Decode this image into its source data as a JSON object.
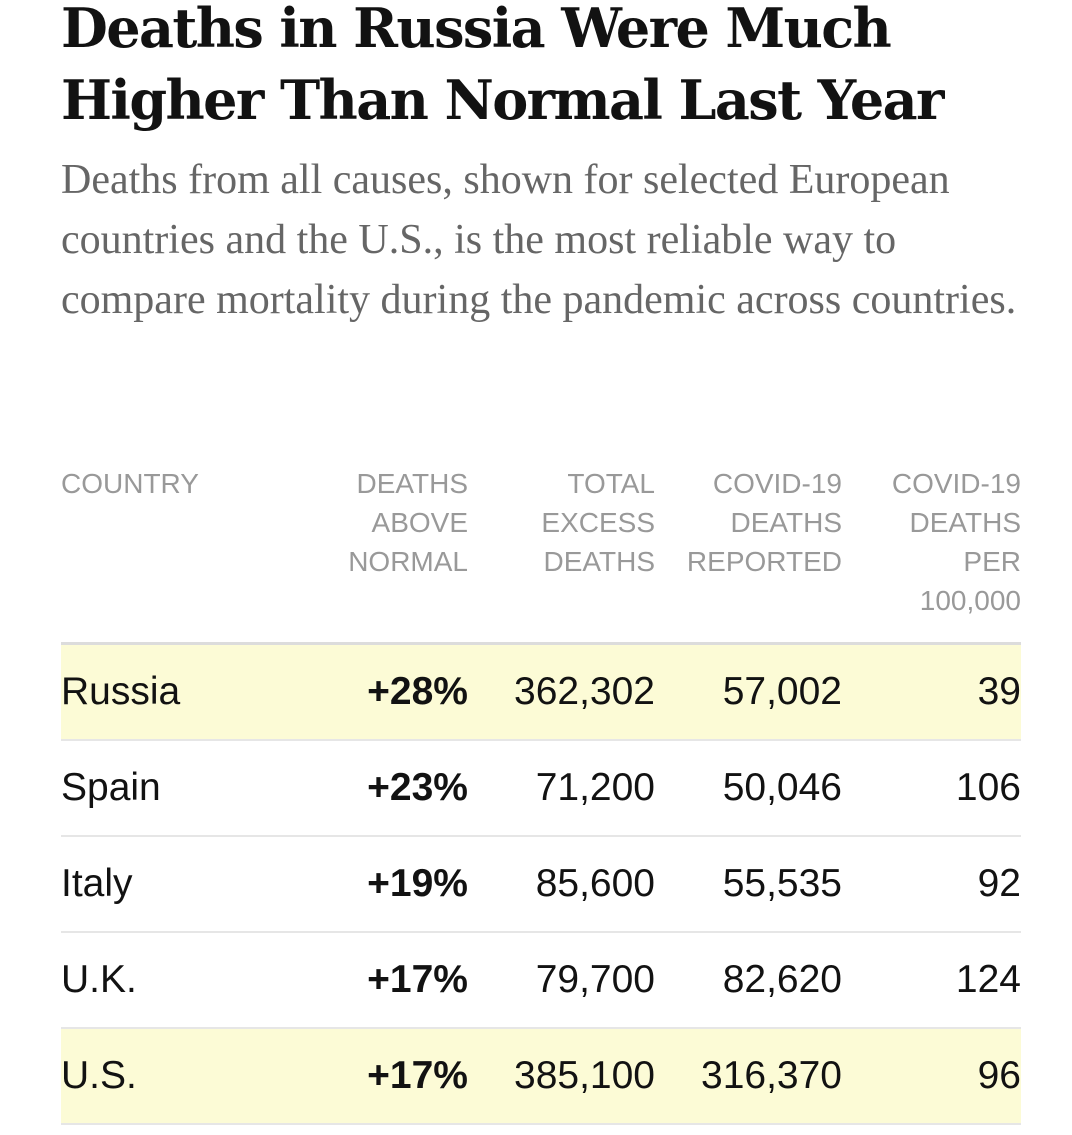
{
  "title": "Deaths in Russia Were Much Higher Than Normal Last Year",
  "subtitle": "Deaths from all causes, shown for selected European countries and the U.S., is the most reliable way to compare mortality during the pandemic across countries.",
  "colors": {
    "highlight_row": "#fcfbd6",
    "header_text": "#999999",
    "subtitle_text": "#666666",
    "body_text": "#121212"
  },
  "chart_data": {
    "type": "table",
    "title": "Deaths in Russia Were Much Higher Than Normal Last Year",
    "subtitle": "Deaths from all causes, shown for selected European countries and the U.S., is the most reliable way to compare mortality during the pandemic across countries.",
    "columns": [
      [
        "COUNTRY"
      ],
      [
        "DEATHS",
        "ABOVE",
        "NORMAL"
      ],
      [
        "TOTAL",
        "EXCESS",
        "DEATHS"
      ],
      [
        "COVID-19",
        "DEATHS",
        "REPORTED"
      ],
      [
        "COVID-19",
        "DEATHS",
        "PER",
        "100,000"
      ]
    ],
    "rows": [
      {
        "country": "Russia",
        "above_normal": "+28%",
        "excess_deaths": "362,302",
        "covid_reported": "57,002",
        "covid_per_100k": "39",
        "highlighted": true
      },
      {
        "country": "Spain",
        "above_normal": "+23%",
        "excess_deaths": "71,200",
        "covid_reported": "50,046",
        "covid_per_100k": "106",
        "highlighted": false
      },
      {
        "country": "Italy",
        "above_normal": "+19%",
        "excess_deaths": "85,600",
        "covid_reported": "55,535",
        "covid_per_100k": "92",
        "highlighted": false
      },
      {
        "country": "U.K.",
        "above_normal": "+17%",
        "excess_deaths": "79,700",
        "covid_reported": "82,620",
        "covid_per_100k": "124",
        "highlighted": false
      },
      {
        "country": "U.S.",
        "above_normal": "+17%",
        "excess_deaths": "385,100",
        "covid_reported": "316,370",
        "covid_per_100k": "96",
        "highlighted": true
      }
    ]
  }
}
